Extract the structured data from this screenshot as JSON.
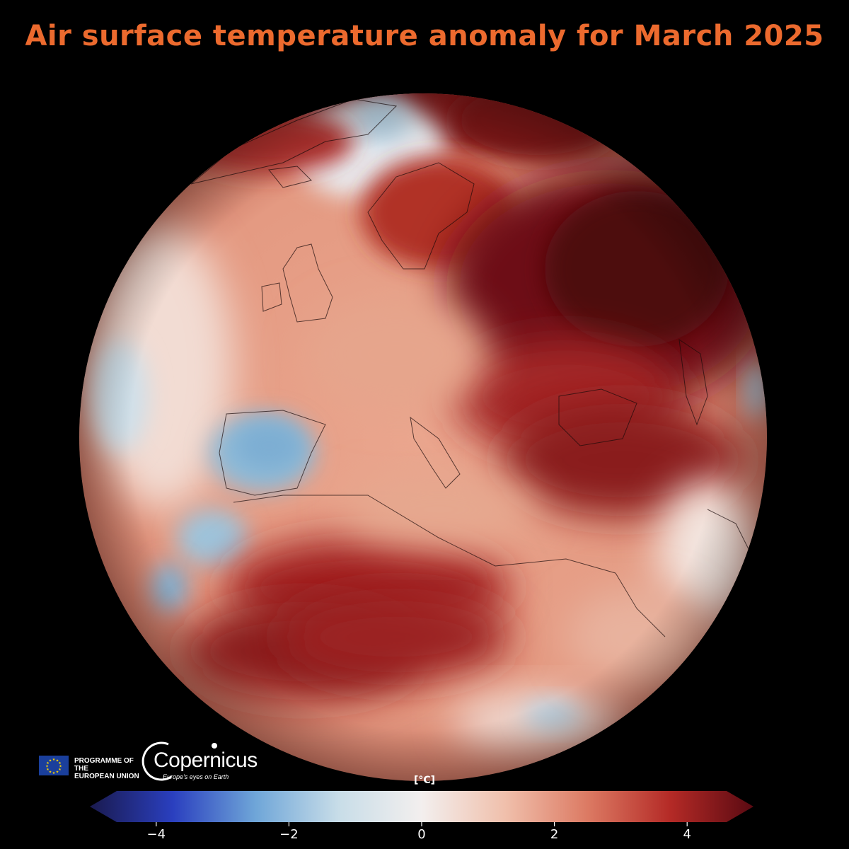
{
  "title": "Air surface temperature anomaly for March 2025",
  "branding": {
    "eu_line1": "PROGRAMME OF THE",
    "eu_line2": "EUROPEAN UNION",
    "copernicus_name": "Copernicus",
    "copernicus_tagline": "Europe's eyes on Earth"
  },
  "colorbar": {
    "unit": "[°C]",
    "min": -5,
    "max": 5,
    "ticks": [
      {
        "value": -4,
        "label": "−4"
      },
      {
        "value": -2,
        "label": "−2"
      },
      {
        "value": 0,
        "label": "0"
      },
      {
        "value": 2,
        "label": "2"
      },
      {
        "value": 4,
        "label": "4"
      }
    ],
    "colors": [
      "#1a1a4e",
      "#2a3fbf",
      "#6fa6d8",
      "#c8dde8",
      "#f3efee",
      "#f0c0ac",
      "#dc7a63",
      "#b42a26",
      "#5a0a12"
    ]
  },
  "colors": {
    "title": "#ec6a2e",
    "background": "#000000",
    "eu_flag": "#1a3f9c"
  },
  "map": {
    "projection": "orthographic",
    "region": "Europe, North Africa and Middle East",
    "warm_regions": [
      "Eastern Europe",
      "Western Russia",
      "Sahara",
      "Arctic"
    ],
    "cool_regions": [
      "Iberian Peninsula",
      "Northwest Africa coast",
      "Greenland"
    ]
  }
}
